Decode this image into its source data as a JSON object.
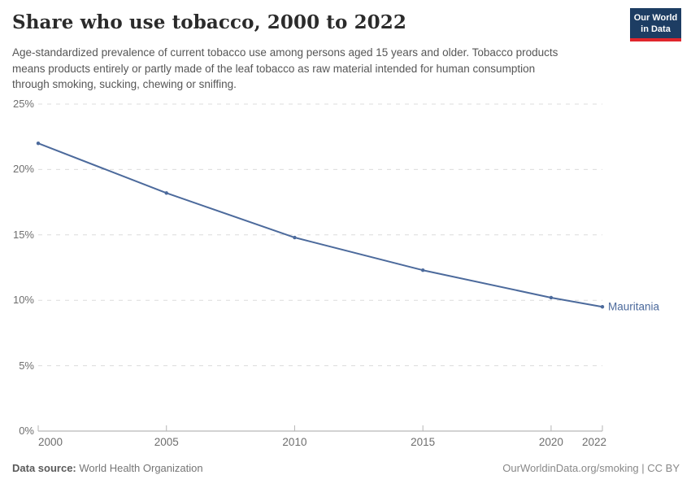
{
  "header": {
    "title": "Share who use tobacco, 2000 to 2022",
    "subtitle": "Age-standardized prevalence of current tobacco use among persons aged 15 years and older. Tobacco products means products entirely or partly made of the leaf tobacco as raw material intended for human consumption through smoking, sucking, chewing or sniffing.",
    "logo": {
      "line1": "Our World",
      "line2": "in Data"
    }
  },
  "chart_data": {
    "type": "line",
    "title": "Share who use tobacco, 2000 to 2022",
    "x": [
      2000,
      2005,
      2010,
      2015,
      2020,
      2022
    ],
    "series": [
      {
        "name": "Mauritania",
        "values": [
          22.0,
          18.2,
          14.8,
          12.3,
          10.2,
          9.5
        ],
        "color": "#4c6a9c"
      }
    ],
    "xlabel": "",
    "ylabel": "",
    "xlim": [
      2000,
      2022
    ],
    "ylim": [
      0,
      25
    ],
    "x_ticks": {
      "values": [
        2000,
        2005,
        2010,
        2015,
        2020,
        2022
      ],
      "labels": [
        "2000",
        "2005",
        "2010",
        "2015",
        "2020",
        "2022"
      ]
    },
    "y_ticks": {
      "values": [
        0,
        5,
        10,
        15,
        20,
        25
      ],
      "labels": [
        "0%",
        "5%",
        "10%",
        "15%",
        "20%",
        "25%"
      ]
    },
    "grid": "horizontal-dashed",
    "legend_position": "line-end-label",
    "unit": "%"
  },
  "colors": {
    "series_blue": "#4c6a9c",
    "gridline": "#dcdcdc",
    "axis_line": "#a5a5a5",
    "tick_mark": "#b5b5b5",
    "tick_text": "#6e6e6e",
    "logo_bg": "#1d3d63",
    "logo_stripe": "#e0262c"
  },
  "footer": {
    "source_label": "Data source:",
    "source_value": "World Health Organization",
    "attribution": "OurWorldinData.org/smoking | CC BY"
  }
}
